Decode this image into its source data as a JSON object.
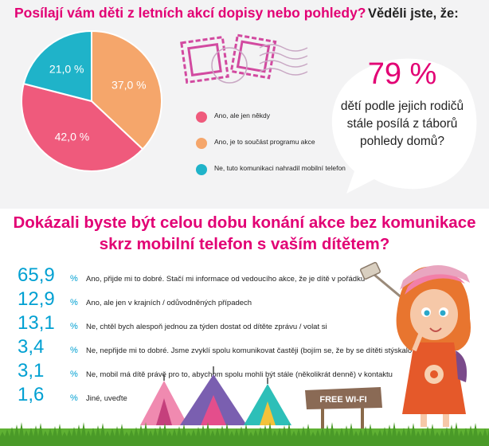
{
  "section1": {
    "title": "Posílají vám děti z letních akcí dopisy nebo pohledy?",
    "sidebar_title": "Věděli jste, že:"
  },
  "chart_data": [
    {
      "type": "pie",
      "title": "Posílají vám děti z letních akcí dopisy nebo pohledy?",
      "slices": [
        {
          "label": "Ano, je to součást programu akce",
          "value": 37.0,
          "text": "37,0 %",
          "color": "#f5a66b"
        },
        {
          "label": "Ano, ale jen někdy",
          "value": 42.0,
          "text": "42,0 %",
          "color": "#ef5a7c"
        },
        {
          "label": "Ne, tuto komunikaci nahradil mobilní telefon",
          "value": 21.0,
          "text": "21,0 %",
          "color": "#1fb3c9"
        }
      ]
    },
    {
      "type": "table",
      "title": "Dokázali byste být celou dobu konání akce bez komunikace skrz mobilní telefon s vaším dítětem?",
      "rows": [
        {
          "value": "65,9",
          "label": "Ano, přijde mi to dobré. Stačí mi informace od vedoucího akce, že je dítě v pořádku"
        },
        {
          "value": "12,9",
          "label": "Ano, ale jen v krajních / odůvodněných případech"
        },
        {
          "value": "13,1",
          "label": "Ne, chtěl bych alespoň jednou za týden dostat od dítěte zprávu / volat si"
        },
        {
          "value": "3,4",
          "label": "Ne, nepřijde mi to dobré. Jsme zvyklí spolu komunikovat častěji (bojím se, že by se dítěti stýskalo)"
        },
        {
          "value": "3,1",
          "label": "Ne, mobil má dítě právě pro to, abychom spolu mohli být stále (několikrát denně) v kontaktu"
        },
        {
          "value": "1,6",
          "label": "Jiné, uveďte"
        }
      ],
      "unit": "%"
    }
  ],
  "legend": [
    {
      "label": "Ano, ale jen někdy",
      "color": "#ef5a7c"
    },
    {
      "label": "Ano, je to součást programu akce",
      "color": "#f5a66b"
    },
    {
      "label": "Ne, tuto komunikaci nahradil mobilní telefon",
      "color": "#1fb3c9"
    }
  ],
  "fact": {
    "big": "79 %",
    "text": "dětí podle jejich rodičů stále posílá z táborů pohledy domů?"
  },
  "section2": {
    "title": "Dokázali byste být celou dobu konání akce bez komunikace skrz mobilní telefon s vaším dítětem?"
  },
  "sign": {
    "text": "FREE WI-FI"
  },
  "colors": {
    "magenta": "#e20074",
    "cyan": "#00a0d2"
  }
}
